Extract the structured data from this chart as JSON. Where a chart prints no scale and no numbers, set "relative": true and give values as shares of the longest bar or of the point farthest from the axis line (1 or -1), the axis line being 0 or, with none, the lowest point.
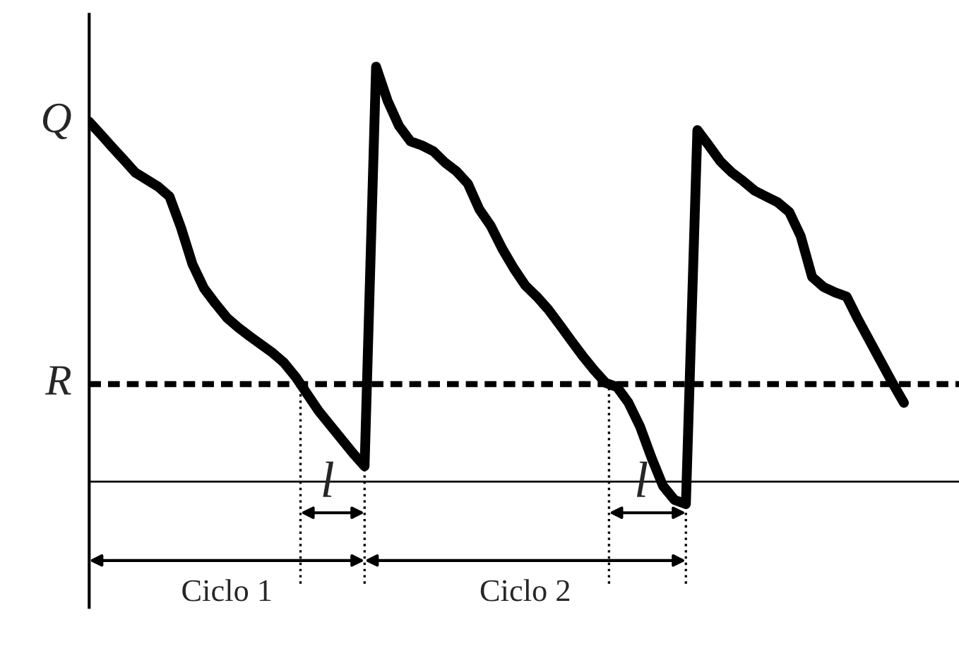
{
  "chart_data": {
    "type": "line",
    "relative": true,
    "grid": false,
    "legend": false,
    "categories": [
      null,
      null,
      null,
      null,
      null,
      null,
      null,
      null,
      null,
      null,
      null,
      null,
      null,
      null,
      null,
      null,
      null,
      null,
      null,
      null,
      null,
      null,
      null,
      null,
      null,
      null,
      null,
      null,
      null,
      null,
      null,
      null,
      null,
      null,
      null,
      null,
      null,
      null,
      null,
      null,
      null,
      null,
      null,
      null,
      null,
      null,
      null,
      null,
      null,
      null,
      null,
      null,
      null,
      null,
      null,
      null,
      null,
      null,
      null,
      null,
      null,
      null,
      null,
      null,
      null,
      null,
      null,
      null,
      null,
      null,
      null,
      null
    ],
    "series": [
      {
        "color": "#000000",
        "values": [
          0.867,
          0.837,
          0.806,
          0.776,
          0.745,
          0.728,
          0.711,
          0.687,
          0.612,
          0.524,
          0.466,
          0.429,
          0.395,
          0.371,
          0.35,
          0.33,
          0.31,
          0.286,
          0.252,
          0.211,
          0.17,
          0.136,
          0.102,
          0.068,
          0.037,
          1.0,
          0.918,
          0.857,
          0.82,
          0.81,
          0.796,
          0.769,
          0.748,
          0.718,
          0.656,
          0.616,
          0.561,
          0.514,
          0.473,
          0.446,
          0.415,
          0.378,
          0.34,
          0.303,
          0.269,
          0.238,
          0.228,
          0.19,
          0.133,
          0.058,
          -0.01,
          -0.044,
          -0.054,
          0.847,
          0.81,
          0.772,
          0.745,
          0.724,
          0.701,
          0.687,
          0.673,
          0.65,
          0.592,
          0.493,
          0.469,
          0.456,
          0.446,
          0.391,
          0.34,
          0.289,
          0.238,
          0.19
        ]
      }
    ],
    "ref_lines": [
      {
        "axis": "y",
        "value": 0.235,
        "label": "R",
        "line_style": "dashed",
        "color": "#000000"
      }
    ],
    "annotations": [
      "l",
      "l",
      "Ciclo 1",
      "Ciclo 2",
      "Q"
    ]
  }
}
